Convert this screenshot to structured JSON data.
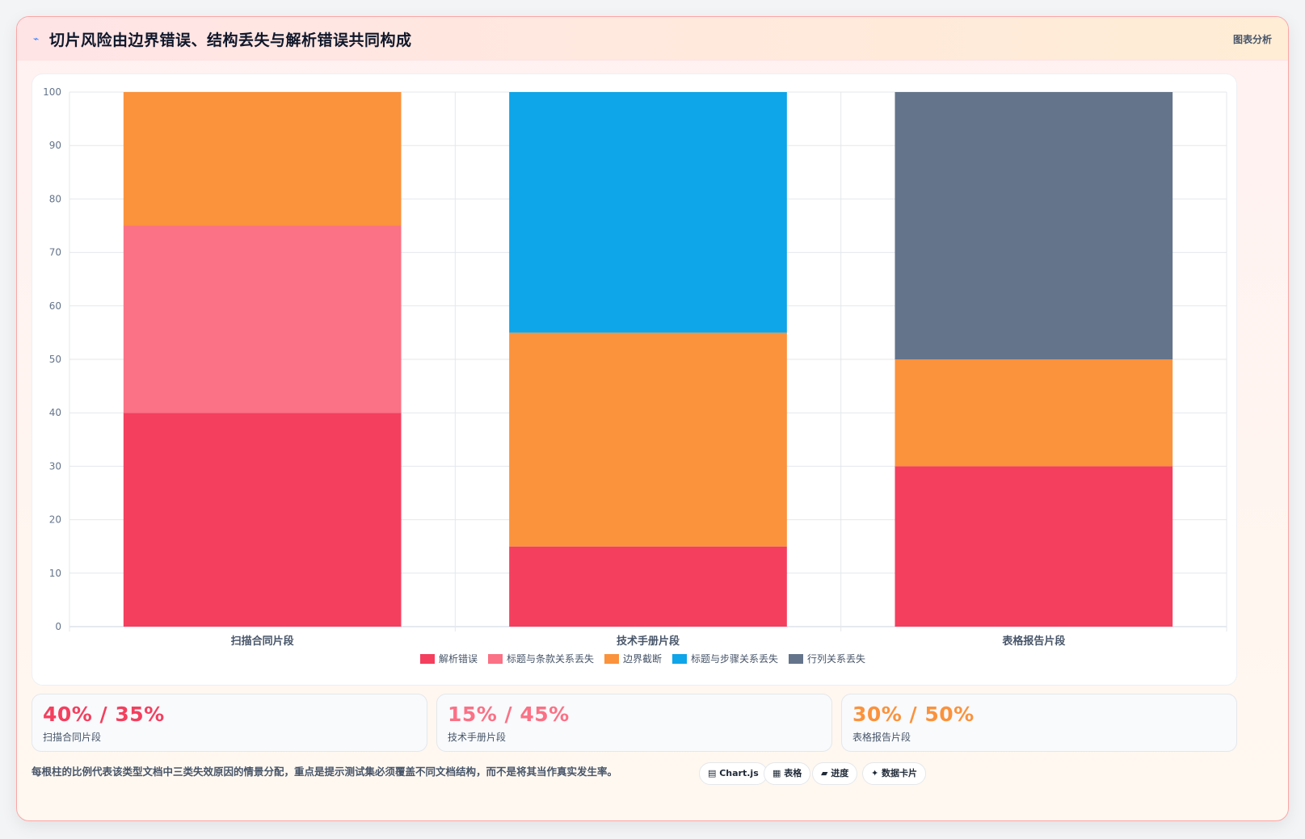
{
  "header": {
    "icon": "lightning-icon",
    "title": "切片风险由边界错误、结构丢失与解析错误共同构成",
    "tag": "图表分析"
  },
  "chart_data": {
    "type": "bar",
    "stacked": true,
    "categories": [
      "扫描合同片段",
      "技术手册片段",
      "表格报告片段"
    ],
    "ylim": [
      0,
      100
    ],
    "yticks": [
      0,
      10,
      20,
      30,
      40,
      50,
      60,
      70,
      80,
      90,
      100
    ],
    "grid": true,
    "legend_position": "bottom",
    "series": [
      {
        "name": "解析错误",
        "color": "#f43f5e",
        "values": [
          40,
          15,
          30
        ]
      },
      {
        "name": "标题与条款关系丢失",
        "color": "#fb7185",
        "values": [
          35,
          0,
          0
        ]
      },
      {
        "name": "边界截断",
        "color": "#fb923c",
        "values": [
          25,
          40,
          20
        ]
      },
      {
        "name": "标题与步骤关系丢失",
        "color": "#0ea5e9",
        "values": [
          0,
          45,
          0
        ]
      },
      {
        "name": "行列关系丢失",
        "color": "#64748b",
        "values": [
          0,
          0,
          50
        ]
      }
    ]
  },
  "stats": [
    {
      "value": "40% / 35%",
      "label": "扫描合同片段",
      "color": "#f43f5e"
    },
    {
      "value": "15% / 45%",
      "label": "技术手册片段",
      "color": "#fb7185"
    },
    {
      "value": "30% / 50%",
      "label": "表格报告片段",
      "color": "#fb923c"
    }
  ],
  "footnote": "每根柱的比例代表该类型文档中三类失效原因的情景分配，重点是提示测试集必须覆盖不同文档结构，而不是将其当作真实发生率。",
  "chips": [
    {
      "icon": "chart-icon",
      "label": "Chart.js"
    },
    {
      "icon": "table-icon",
      "label": "表格"
    },
    {
      "icon": "progress-icon",
      "label": "进度"
    },
    {
      "icon": "sparkle-icon",
      "label": "数据卡片"
    }
  ]
}
